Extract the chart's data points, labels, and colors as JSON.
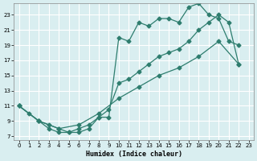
{
  "xlabel": "Humidex (Indice chaleur)",
  "bg_color": "#d9eef0",
  "grid_color": "#ffffff",
  "line_color": "#2e7d6e",
  "xlim": [
    -0.5,
    23.5
  ],
  "ylim": [
    6.5,
    24.5
  ],
  "xticks": [
    0,
    1,
    2,
    3,
    4,
    5,
    6,
    7,
    8,
    9,
    10,
    11,
    12,
    13,
    14,
    15,
    16,
    17,
    18,
    19,
    20,
    21,
    22,
    23
  ],
  "yticks": [
    7,
    9,
    11,
    13,
    15,
    17,
    19,
    21,
    23
  ],
  "line1_x": [
    0,
    1,
    2,
    3,
    4,
    5,
    6,
    7,
    8,
    9,
    10,
    11,
    12,
    13,
    14,
    15,
    16,
    17,
    18,
    19,
    20,
    21,
    22
  ],
  "line1_y": [
    11,
    10,
    9,
    8,
    7.5,
    7.5,
    7.5,
    8,
    9.5,
    9.5,
    20,
    19.5,
    22,
    21.5,
    22.5,
    22.5,
    22,
    24,
    24.5,
    23,
    22.5,
    19.5,
    19
  ],
  "line2_x": [
    0,
    2,
    3,
    4,
    5,
    6,
    7,
    8,
    9,
    10,
    11,
    12,
    13,
    14,
    15,
    16,
    17,
    18,
    19,
    20,
    21,
    22
  ],
  "line2_y": [
    11,
    9,
    8.5,
    8,
    7.5,
    8,
    8.5,
    9.5,
    10.5,
    14,
    14.5,
    15.5,
    16.5,
    17.5,
    18,
    18.5,
    19.5,
    21,
    22,
    23,
    22,
    16.5
  ],
  "line3_x": [
    0,
    2,
    4,
    6,
    8,
    10,
    12,
    14,
    16,
    18,
    20,
    22
  ],
  "line3_y": [
    11,
    9,
    8,
    8.5,
    10,
    12,
    13.5,
    15,
    16,
    17.5,
    19.5,
    16.5
  ]
}
